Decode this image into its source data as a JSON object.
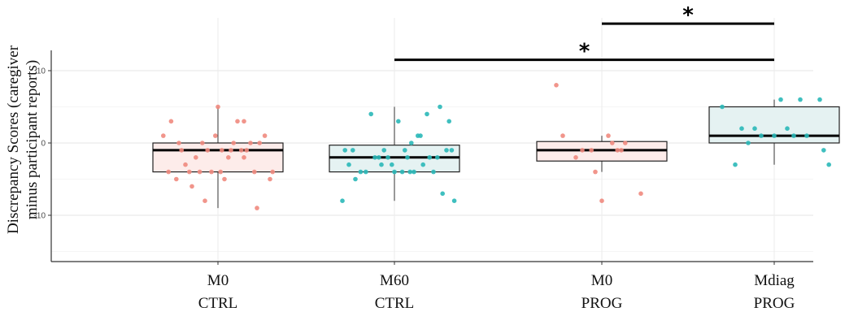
{
  "chart_data": {
    "type": "box",
    "ylabel_lines": [
      "Discrepancy Scores (caregiver",
      "minus participant reports)"
    ],
    "ylim": [
      -16,
      13
    ],
    "y_ticks": [
      {
        "value": 10,
        "label": "10"
      },
      {
        "value": 0,
        "label": "0"
      },
      {
        "value": -10,
        "label": "-10"
      }
    ],
    "grid": true,
    "categories": [
      {
        "top": "M0",
        "bottom": "CTRL"
      },
      {
        "top": "M60",
        "bottom": "CTRL"
      },
      {
        "top": "M0",
        "bottom": "PROG"
      },
      {
        "top": "Mdiag",
        "bottom": "PROG"
      }
    ],
    "boxes": [
      {
        "q1": -4,
        "median": -1,
        "q3": 0,
        "whisker_low": -9,
        "whisker_high": 5,
        "fill": "#fdecea",
        "point_color": "#f08a7e"
      },
      {
        "q1": -4,
        "median": -2,
        "q3": -0.3,
        "whisker_low": -8,
        "whisker_high": 5,
        "fill": "#e5f2f2",
        "point_color": "#2ab8b8"
      },
      {
        "q1": -2.5,
        "median": -1,
        "q3": 0.2,
        "whisker_low": -4,
        "whisker_high": 1,
        "fill": "#fdecea",
        "point_color": "#f08a7e"
      },
      {
        "q1": 0,
        "median": 1,
        "q3": 5,
        "whisker_low": -3,
        "whisker_high": 6,
        "fill": "#e5f2f2",
        "point_color": "#2ab8b8"
      }
    ],
    "points": [
      [
        [
          -0.42,
          1
        ],
        [
          -0.36,
          3
        ],
        [
          -0.3,
          0
        ],
        [
          -0.28,
          -1
        ],
        [
          -0.25,
          -3
        ],
        [
          -0.22,
          -4
        ],
        [
          -0.2,
          -6
        ],
        [
          -0.17,
          -2
        ],
        [
          -0.14,
          -4
        ],
        [
          -0.12,
          0
        ],
        [
          -0.1,
          -8
        ],
        [
          -0.08,
          -1
        ],
        [
          -0.05,
          -4
        ],
        [
          -0.02,
          1
        ],
        [
          0.0,
          5
        ],
        [
          0.03,
          -1
        ],
        [
          0.05,
          -5
        ],
        [
          0.08,
          -2
        ],
        [
          0.1,
          -1
        ],
        [
          0.12,
          0
        ],
        [
          0.15,
          3
        ],
        [
          0.18,
          -1
        ],
        [
          0.2,
          3
        ],
        [
          0.22,
          -1
        ],
        [
          0.25,
          0
        ],
        [
          0.28,
          -4
        ],
        [
          0.32,
          0
        ],
        [
          0.36,
          1
        ],
        [
          0.4,
          -5
        ],
        [
          0.2,
          -2
        ],
        [
          -0.38,
          -4
        ],
        [
          0.3,
          -9
        ],
        [
          -0.32,
          -5
        ],
        [
          0.42,
          -4
        ],
        [
          0.02,
          -4
        ]
      ],
      [
        [
          -0.4,
          -8
        ],
        [
          -0.38,
          -1
        ],
        [
          -0.32,
          -1
        ],
        [
          -0.3,
          -5
        ],
        [
          -0.26,
          -4
        ],
        [
          -0.22,
          -4
        ],
        [
          -0.18,
          4
        ],
        [
          -0.15,
          -2
        ],
        [
          -0.12,
          -2
        ],
        [
          -0.1,
          -3
        ],
        [
          -0.05,
          -2
        ],
        [
          -0.02,
          -3
        ],
        [
          0.0,
          -4
        ],
        [
          0.03,
          3
        ],
        [
          0.06,
          -4
        ],
        [
          0.08,
          -1
        ],
        [
          0.1,
          -2
        ],
        [
          0.13,
          0
        ],
        [
          0.15,
          -4
        ],
        [
          0.18,
          1
        ],
        [
          0.2,
          1
        ],
        [
          0.22,
          -3
        ],
        [
          0.25,
          4
        ],
        [
          0.27,
          -2
        ],
        [
          0.3,
          -4
        ],
        [
          0.33,
          -2
        ],
        [
          0.35,
          5
        ],
        [
          0.37,
          -7
        ],
        [
          0.4,
          -1
        ],
        [
          0.42,
          3
        ],
        [
          0.44,
          -1
        ],
        [
          0.46,
          -8
        ],
        [
          -0.35,
          -3
        ],
        [
          0.12,
          -4
        ],
        [
          -0.08,
          -1
        ]
      ],
      [
        [
          -0.35,
          8
        ],
        [
          -0.3,
          1
        ],
        [
          -0.2,
          -2
        ],
        [
          -0.15,
          -1
        ],
        [
          -0.05,
          -4
        ],
        [
          0.0,
          -8
        ],
        [
          0.05,
          1
        ],
        [
          0.08,
          0
        ],
        [
          0.12,
          -1
        ],
        [
          0.18,
          0
        ],
        [
          0.3,
          -7
        ],
        [
          -0.08,
          -1
        ],
        [
          0.15,
          -1
        ]
      ],
      [
        [
          -0.4,
          5
        ],
        [
          -0.3,
          -3
        ],
        [
          -0.2,
          0
        ],
        [
          -0.15,
          2
        ],
        [
          -0.1,
          1
        ],
        [
          0.0,
          1
        ],
        [
          0.05,
          6
        ],
        [
          0.1,
          2
        ],
        [
          0.15,
          1
        ],
        [
          0.2,
          6
        ],
        [
          0.25,
          1
        ],
        [
          0.35,
          6
        ],
        [
          0.42,
          -3
        ],
        [
          0.38,
          -1
        ],
        [
          -0.25,
          2
        ]
      ]
    ],
    "significance": [
      {
        "from": 1,
        "to": 3,
        "y": 11.5,
        "label": "*"
      },
      {
        "from": 2,
        "to": 3,
        "y": 16.5,
        "label": "*"
      }
    ]
  }
}
